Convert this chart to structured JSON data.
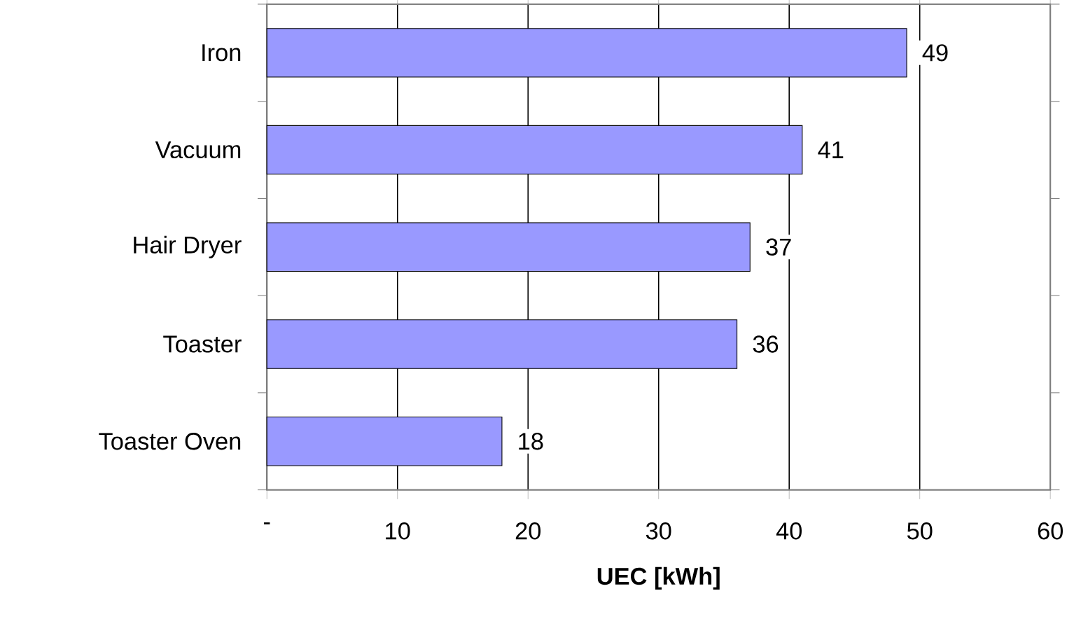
{
  "chart_data": {
    "type": "bar",
    "orientation": "horizontal",
    "xlabel": "**UEC [kWh]**",
    "categories": [
      "Iron",
      "Vacuum",
      "Hair Dryer",
      "Toaster",
      "Toaster Oven"
    ],
    "values": [
      49,
      41,
      37,
      36,
      18
    ],
    "color": "#9999ff",
    "data_labels": true,
    "xlim": [
      0,
      60
    ],
    "xticks": [
      {
        "value": 0,
        "label": "-"
      },
      10,
      20,
      30,
      40,
      50,
      60
    ],
    "grid": "x"
  }
}
